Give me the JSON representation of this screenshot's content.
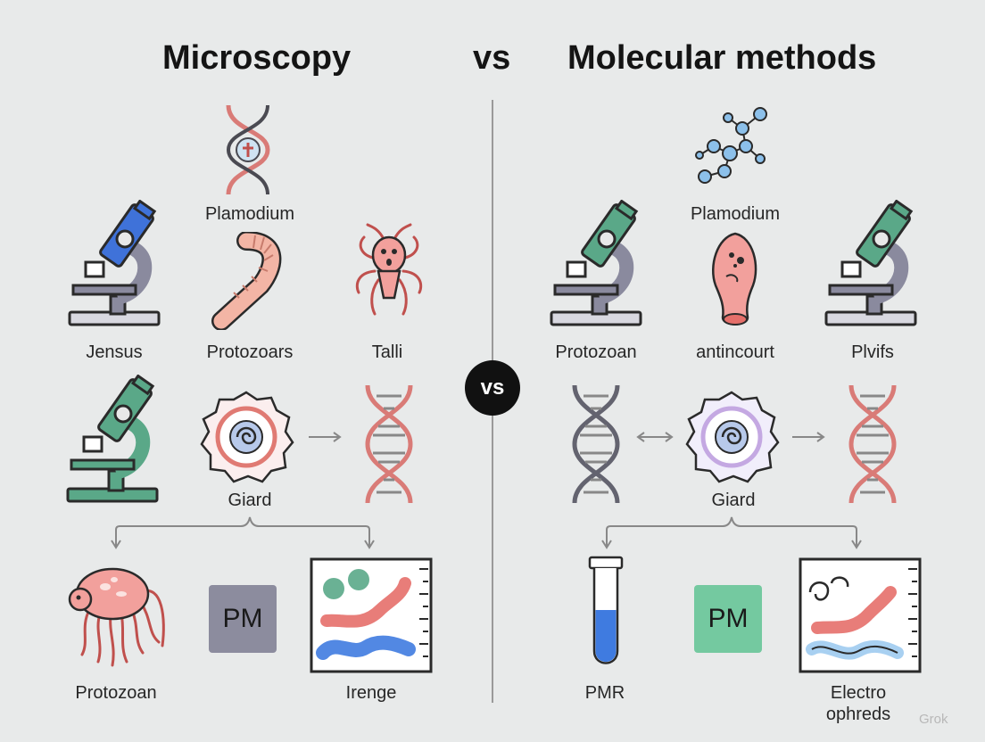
{
  "header": {
    "left_title": "Microscopy",
    "vs": "vs",
    "right_title": "Molecular methods"
  },
  "center_badge": "vs",
  "left": {
    "labels": {
      "plamodium": "Plamodium",
      "jensus": "Jensus",
      "protozoars": "Protozoars",
      "talli": "Talli",
      "giard": "Giard",
      "protozoan": "Protozoan",
      "irenge": "Irenge"
    },
    "pm_box": {
      "text": "PM",
      "color": "#8c8c9e"
    }
  },
  "right": {
    "labels": {
      "plamodium": "Plamodium",
      "protozoan": "Protozoan",
      "antincourt": "antincourt",
      "plvifs": "Plvifs",
      "giard": "Giard",
      "pmr": "PMR",
      "electro_line1": "Electro",
      "electro_line2": "ophreds"
    },
    "pm_box": {
      "text": "PM",
      "color": "#74c9a0"
    }
  },
  "watermark": "Grok",
  "colors": {
    "background": "#e8eaea",
    "microscope_gray": "#8a8a9e",
    "microscope_blue": "#3f72d9",
    "microscope_green": "#5aa888",
    "dna_pink": "#d97b77",
    "dna_gray": "#63636f",
    "organism_pink": "#f2a09c",
    "molecule_blue": "#8cc0ea"
  }
}
